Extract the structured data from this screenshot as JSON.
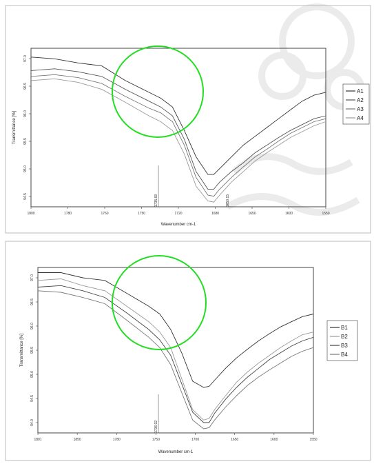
{
  "chart_data": [
    {
      "type": "line",
      "xlabel": "Wavenumber cm-1",
      "ylabel": "Transmittance [%]",
      "xlim": [
        1800,
        1550
      ],
      "ylim": [
        94.5,
        97.2
      ],
      "xticks": [
        "1800",
        "1780",
        "1760",
        "1750",
        "1720",
        "1680",
        "1650",
        "1600",
        "1550"
      ],
      "yticks": [
        "97.0",
        "96.5",
        "96.0",
        "95.5",
        "95.0",
        "94.5"
      ],
      "peak_labels": [
        "1735.83",
        "1650.15"
      ],
      "series": [
        {
          "name": "A1",
          "color": "#333333",
          "x": [
            1800,
            1780,
            1760,
            1740,
            1720,
            1700,
            1690,
            1680,
            1670,
            1660,
            1650,
            1645,
            1640,
            1630,
            1620,
            1610,
            1600,
            1590,
            1580,
            1570,
            1560,
            1550
          ],
          "y": [
            97.05,
            97.02,
            96.95,
            96.9,
            96.65,
            96.45,
            96.35,
            96.2,
            95.8,
            95.35,
            95.05,
            95.05,
            95.15,
            95.35,
            95.55,
            95.7,
            95.85,
            96.0,
            96.15,
            96.3,
            96.4,
            96.45
          ]
        },
        {
          "name": "A2",
          "color": "#555555",
          "x": [
            1800,
            1780,
            1760,
            1740,
            1720,
            1700,
            1690,
            1680,
            1670,
            1660,
            1650,
            1645,
            1640,
            1630,
            1620,
            1610,
            1600,
            1590,
            1580,
            1570,
            1560,
            1550
          ],
          "y": [
            96.82,
            96.85,
            96.8,
            96.72,
            96.5,
            96.3,
            96.2,
            96.05,
            95.65,
            95.1,
            94.8,
            94.8,
            94.92,
            95.1,
            95.25,
            95.42,
            95.55,
            95.68,
            95.8,
            95.9,
            96.0,
            96.05
          ]
        },
        {
          "name": "A3",
          "color": "#777777",
          "x": [
            1800,
            1780,
            1760,
            1740,
            1720,
            1700,
            1690,
            1680,
            1670,
            1660,
            1650,
            1645,
            1640,
            1630,
            1620,
            1610,
            1600,
            1590,
            1580,
            1570,
            1560,
            1550
          ],
          "y": [
            96.72,
            96.75,
            96.7,
            96.6,
            96.38,
            96.18,
            96.1,
            95.95,
            95.55,
            95.0,
            94.7,
            94.68,
            94.8,
            95.0,
            95.18,
            95.35,
            95.48,
            95.62,
            95.75,
            95.85,
            95.95,
            96.0
          ]
        },
        {
          "name": "A4",
          "color": "#999999",
          "x": [
            1800,
            1780,
            1760,
            1740,
            1720,
            1700,
            1690,
            1680,
            1670,
            1660,
            1650,
            1645,
            1640,
            1630,
            1620,
            1610,
            1600,
            1590,
            1580,
            1570,
            1560,
            1550
          ],
          "y": [
            96.65,
            96.68,
            96.62,
            96.5,
            96.28,
            96.05,
            95.95,
            95.8,
            95.4,
            94.85,
            94.6,
            94.58,
            94.7,
            94.92,
            95.1,
            95.28,
            95.42,
            95.55,
            95.68,
            95.78,
            95.88,
            95.95
          ]
        }
      ]
    },
    {
      "type": "line",
      "xlabel": "Wavenumber cm-1",
      "ylabel": "Transmittance [%]",
      "xlim": [
        1801,
        1550
      ],
      "ylim": [
        94.0,
        97.2
      ],
      "xticks": [
        "1801",
        "1850",
        "1780",
        "1750",
        "1700",
        "1650",
        "1600",
        "1550"
      ],
      "yticks": [
        "97.0",
        "96.5",
        "96.0",
        "95.5",
        "95.0",
        "94.5",
        "94.0"
      ],
      "peak_labels": [
        "1736.92"
      ],
      "series": [
        {
          "name": "B1",
          "color": "#333333",
          "x": [
            1801,
            1780,
            1760,
            1740,
            1720,
            1700,
            1690,
            1680,
            1670,
            1660,
            1650,
            1645,
            1640,
            1630,
            1620,
            1610,
            1600,
            1590,
            1580,
            1570,
            1560,
            1550
          ],
          "y": [
            97.1,
            97.1,
            97.0,
            96.95,
            96.7,
            96.45,
            96.3,
            96.0,
            95.55,
            95.0,
            94.88,
            94.9,
            95.02,
            95.25,
            95.45,
            95.62,
            95.78,
            95.92,
            96.05,
            96.15,
            96.25,
            96.3
          ]
        },
        {
          "name": "B2",
          "color": "#999999",
          "x": [
            1801,
            1780,
            1760,
            1740,
            1720,
            1700,
            1690,
            1680,
            1670,
            1660,
            1650,
            1645,
            1640,
            1630,
            1620,
            1610,
            1600,
            1590,
            1580,
            1570,
            1560,
            1550
          ],
          "y": [
            96.95,
            96.98,
            96.85,
            96.75,
            96.45,
            96.15,
            95.95,
            95.65,
            95.05,
            94.45,
            94.25,
            94.28,
            94.45,
            94.72,
            94.98,
            95.18,
            95.35,
            95.5,
            95.65,
            95.78,
            95.9,
            95.95
          ]
        },
        {
          "name": "B3",
          "color": "#444444",
          "x": [
            1801,
            1780,
            1760,
            1740,
            1720,
            1700,
            1690,
            1680,
            1670,
            1660,
            1650,
            1645,
            1640,
            1630,
            1620,
            1610,
            1600,
            1590,
            1580,
            1570,
            1560,
            1550
          ],
          "y": [
            96.82,
            96.85,
            96.75,
            96.62,
            96.32,
            96.0,
            95.8,
            95.5,
            94.95,
            94.4,
            94.2,
            94.2,
            94.38,
            94.65,
            94.88,
            95.08,
            95.25,
            95.42,
            95.55,
            95.68,
            95.78,
            95.85
          ]
        },
        {
          "name": "B4",
          "color": "#777777",
          "x": [
            1801,
            1780,
            1760,
            1740,
            1720,
            1700,
            1690,
            1680,
            1670,
            1660,
            1650,
            1645,
            1640,
            1630,
            1620,
            1610,
            1600,
            1590,
            1580,
            1570,
            1560,
            1550
          ],
          "y": [
            96.75,
            96.72,
            96.62,
            96.5,
            96.18,
            95.85,
            95.65,
            95.32,
            94.78,
            94.25,
            94.08,
            94.1,
            94.25,
            94.5,
            94.72,
            94.92,
            95.08,
            95.22,
            95.35,
            95.48,
            95.58,
            95.65
          ]
        }
      ]
    }
  ],
  "highlight_color": "#22dd22",
  "watermark_icon": "university-logo-watermark"
}
